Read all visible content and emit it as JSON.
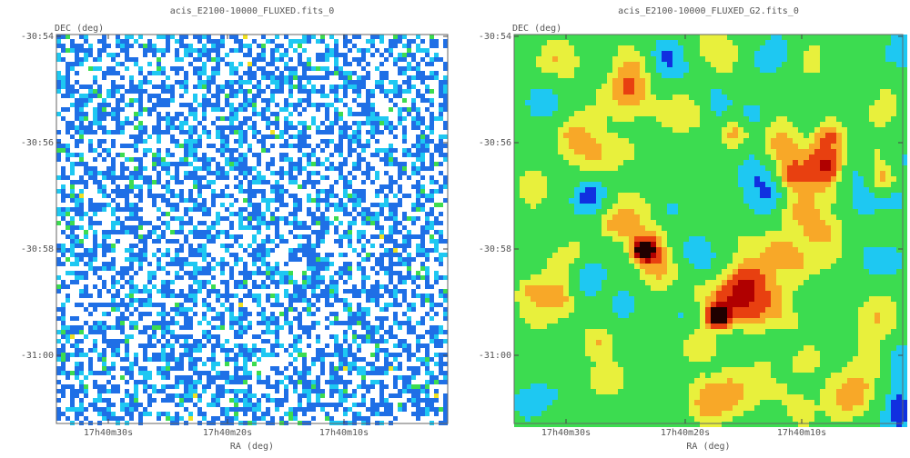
{
  "panels": [
    {
      "title": "acis_E2100-10000_FLUXED.fits_0",
      "xlabel": "RA (deg)",
      "ylabel": "DEC (deg)",
      "xticks": [
        "17h40m30s",
        "17h40m20s",
        "17h40m10s"
      ],
      "yticks": [
        "-30:54",
        "-30:56",
        "-30:58",
        "-31:00"
      ]
    },
    {
      "title": "acis_E2100-10000_FLUXED_G2.fits_0",
      "xlabel": "RA (deg)",
      "ylabel": "DEC (deg)",
      "xticks": [
        "17h40m30s",
        "17h40m20s",
        "17h40m10s"
      ],
      "yticks": [
        "-30:54",
        "-30:56",
        "-30:58",
        "-31:00"
      ]
    }
  ]
}
